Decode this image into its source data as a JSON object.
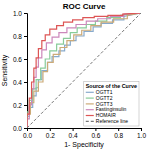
{
  "chart_data": {
    "type": "line",
    "title": "ROC Curve",
    "xlabel": "1- Specificity",
    "ylabel": "Sensitivity",
    "legend": "lower right",
    "legend_title": "Source of the Curve",
    "xlim": [
      0.0,
      1.0
    ],
    "ylim": [
      0.0,
      1.0
    ],
    "xticks": [
      {
        "value": 0,
        "label": "0.0"
      },
      0.2,
      0.4,
      0.6,
      0.8,
      {
        "value": 1,
        "label": "1.0"
      }
    ],
    "yticks": [
      {
        "value": 0,
        "label": "0.0"
      },
      0.2,
      0.4,
      0.6,
      0.8,
      {
        "value": 1,
        "label": "1.0"
      }
    ],
    "series": [
      {
        "name": "OGTT1",
        "color": "#88aacc",
        "line_style": "solid",
        "x": [
          0.0,
          0.0,
          0.02,
          0.02,
          0.05,
          0.05,
          0.08,
          0.08,
          0.1,
          0.1,
          0.13,
          0.13,
          0.18,
          0.18,
          0.22,
          0.22,
          0.28,
          0.28,
          0.33,
          0.33,
          0.38,
          0.38,
          0.43,
          0.43,
          0.5,
          0.5,
          0.58,
          0.58,
          0.65,
          0.65,
          0.75,
          0.75,
          0.85,
          0.85,
          1.0
        ],
        "values": [
          0.0,
          0.1,
          0.1,
          0.18,
          0.18,
          0.28,
          0.28,
          0.35,
          0.35,
          0.42,
          0.42,
          0.5,
          0.5,
          0.57,
          0.57,
          0.62,
          0.62,
          0.67,
          0.67,
          0.72,
          0.72,
          0.76,
          0.76,
          0.8,
          0.8,
          0.84,
          0.84,
          0.88,
          0.88,
          0.91,
          0.91,
          0.94,
          0.94,
          0.97,
          1.0
        ]
      },
      {
        "name": "OGTT2",
        "color": "#88cc99",
        "line_style": "solid",
        "x": [
          0.0,
          0.0,
          0.02,
          0.02,
          0.05,
          0.05,
          0.08,
          0.08,
          0.12,
          0.12,
          0.16,
          0.16,
          0.2,
          0.2,
          0.26,
          0.26,
          0.32,
          0.32,
          0.38,
          0.38,
          0.44,
          0.44,
          0.52,
          0.52,
          0.6,
          0.6,
          0.7,
          0.7,
          0.82,
          0.82,
          1.0
        ],
        "values": [
          0.0,
          0.14,
          0.14,
          0.24,
          0.24,
          0.34,
          0.34,
          0.42,
          0.42,
          0.52,
          0.52,
          0.6,
          0.6,
          0.67,
          0.67,
          0.73,
          0.73,
          0.78,
          0.78,
          0.83,
          0.83,
          0.87,
          0.87,
          0.9,
          0.9,
          0.93,
          0.93,
          0.96,
          0.96,
          0.98,
          1.0
        ]
      },
      {
        "name": "OGTT3",
        "color": "#ccaa77",
        "line_style": "solid",
        "x": [
          0.0,
          0.0,
          0.03,
          0.03,
          0.06,
          0.06,
          0.1,
          0.1,
          0.14,
          0.14,
          0.18,
          0.18,
          0.23,
          0.23,
          0.29,
          0.29,
          0.35,
          0.35,
          0.41,
          0.41,
          0.48,
          0.48,
          0.56,
          0.56,
          0.65,
          0.65,
          0.76,
          0.76,
          0.88,
          0.88,
          1.0
        ],
        "values": [
          0.0,
          0.12,
          0.12,
          0.22,
          0.22,
          0.32,
          0.32,
          0.4,
          0.4,
          0.49,
          0.49,
          0.57,
          0.57,
          0.64,
          0.64,
          0.7,
          0.7,
          0.76,
          0.76,
          0.81,
          0.81,
          0.85,
          0.85,
          0.89,
          0.89,
          0.92,
          0.92,
          0.95,
          0.95,
          0.98,
          1.0
        ]
      },
      {
        "name": "Fastinginsulin",
        "color": "#cc88bb",
        "line_style": "solid",
        "x": [
          0.0,
          0.0,
          0.02,
          0.02,
          0.04,
          0.04,
          0.06,
          0.06,
          0.08,
          0.08,
          0.1,
          0.1,
          0.13,
          0.13,
          0.17,
          0.17,
          0.22,
          0.22,
          0.28,
          0.28,
          0.35,
          0.35,
          0.43,
          0.43,
          0.52,
          0.52,
          0.62,
          0.62,
          0.73,
          0.73,
          0.85,
          0.85,
          1.0
        ],
        "values": [
          0.0,
          0.08,
          0.08,
          0.2,
          0.2,
          0.34,
          0.34,
          0.44,
          0.44,
          0.53,
          0.53,
          0.61,
          0.61,
          0.68,
          0.68,
          0.74,
          0.74,
          0.79,
          0.79,
          0.83,
          0.83,
          0.87,
          0.87,
          0.9,
          0.9,
          0.93,
          0.93,
          0.95,
          0.95,
          0.97,
          0.97,
          0.99,
          1.0
        ]
      },
      {
        "name": "HOMAIR",
        "color": "#dd5555",
        "line_style": "solid",
        "x": [
          0.0,
          0.0,
          0.02,
          0.02,
          0.04,
          0.04,
          0.06,
          0.06,
          0.08,
          0.08,
          0.1,
          0.1,
          0.13,
          0.13,
          0.16,
          0.16,
          0.2,
          0.2,
          0.26,
          0.26,
          0.32,
          0.32,
          0.4,
          0.4,
          0.49,
          0.49,
          0.59,
          0.59,
          0.71,
          0.71,
          0.84,
          0.84,
          1.0
        ],
        "values": [
          0.0,
          0.12,
          0.12,
          0.26,
          0.26,
          0.4,
          0.4,
          0.52,
          0.52,
          0.61,
          0.61,
          0.69,
          0.69,
          0.76,
          0.76,
          0.81,
          0.81,
          0.86,
          0.86,
          0.89,
          0.89,
          0.92,
          0.92,
          0.94,
          0.94,
          0.96,
          0.96,
          0.97,
          0.97,
          0.98,
          0.98,
          0.99,
          1.0
        ]
      },
      {
        "name": "Reference line",
        "color": "#777777",
        "line_style": "dashed",
        "x": [
          0,
          1
        ],
        "values": [
          0,
          1
        ]
      }
    ]
  }
}
